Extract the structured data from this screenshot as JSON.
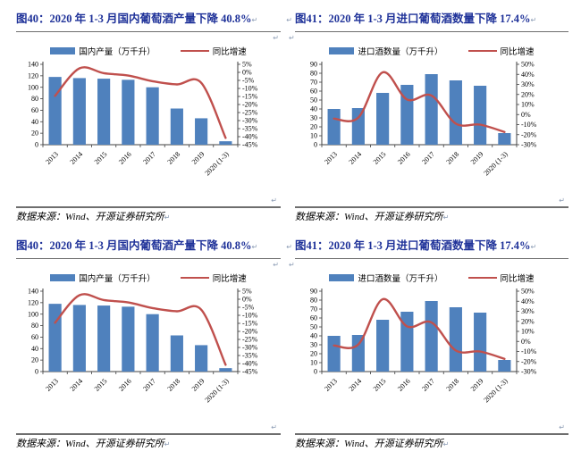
{
  "marks": {
    "pilcrow": "↵"
  },
  "colors": {
    "title": "#1f3299",
    "rule": "#6e6e6e",
    "pilcrow": "#8c9cb5",
    "bar_blue": "#4F81BD",
    "line_red": "#C0504D",
    "axis": "#404040"
  },
  "charts": [
    {
      "title": "图40：2020 年 1-3 月国内葡萄酒产量下降 40.8%",
      "source": "数据来源：Wind、开源证券研究所",
      "chart_data": {
        "type": "bar+line",
        "categories": [
          "2013",
          "2014",
          "2015",
          "2016",
          "2017",
          "2018",
          "2019",
          "2020 (1-3)"
        ],
        "series": [
          {
            "name": "国内产量（万千升）",
            "type": "bar",
            "axis": "left",
            "color": "#4F81BD",
            "values": [
              118,
              116,
              115,
              113,
              100,
              63,
              46,
              6
            ]
          },
          {
            "name": "同比增速",
            "type": "line",
            "axis": "right",
            "color": "#C0504D",
            "values": [
              -14.6,
              2.5,
              -0.5,
              -2,
              -5.5,
              -7.5,
              -6.5,
              -40.8
            ]
          }
        ],
        "left_axis": {
          "min": 0,
          "max": 140,
          "step": 20,
          "labels": [
            "140",
            "120",
            "100",
            "80",
            "60",
            "40",
            "20",
            "0"
          ]
        },
        "right_axis": {
          "min": -45,
          "max": 5,
          "step": 5,
          "labels": [
            "5%",
            "0%",
            "-5%",
            "-10%",
            "-15%",
            "-20%",
            "-25%",
            "-30%",
            "-35%",
            "-40%",
            "-45%"
          ]
        },
        "grid": false,
        "legend_position": "top"
      }
    },
    {
      "title": "图41：2020 年 1-3 月进口葡萄酒数量下降 17.4%",
      "source": "数据来源：Wind、开源证券研究所",
      "chart_data": {
        "type": "bar+line",
        "categories": [
          "2013",
          "2014",
          "2015",
          "2016",
          "2017",
          "2018",
          "2019",
          "2020 (1-3)"
        ],
        "series": [
          {
            "name": "进口酒数量（万千升）",
            "type": "bar",
            "axis": "left",
            "color": "#4F81BD",
            "values": [
              40,
              41,
              58,
              67,
              79,
              72,
              66,
              13
            ]
          },
          {
            "name": "同比增速",
            "type": "line",
            "axis": "right",
            "color": "#C0504D",
            "values": [
              -4,
              -3,
              42,
              15,
              19,
              -9,
              -10,
              -17.4
            ]
          }
        ],
        "left_axis": {
          "min": 0,
          "max": 90,
          "step": 10,
          "labels": [
            "90",
            "80",
            "70",
            "60",
            "50",
            "40",
            "30",
            "20",
            "10",
            "0"
          ]
        },
        "right_axis": {
          "min": -30,
          "max": 50,
          "step": 10,
          "labels": [
            "50%",
            "40%",
            "30%",
            "20%",
            "10%",
            "0%",
            "-10%",
            "-20%",
            "-30%"
          ]
        },
        "grid": false,
        "legend_position": "top"
      }
    }
  ]
}
